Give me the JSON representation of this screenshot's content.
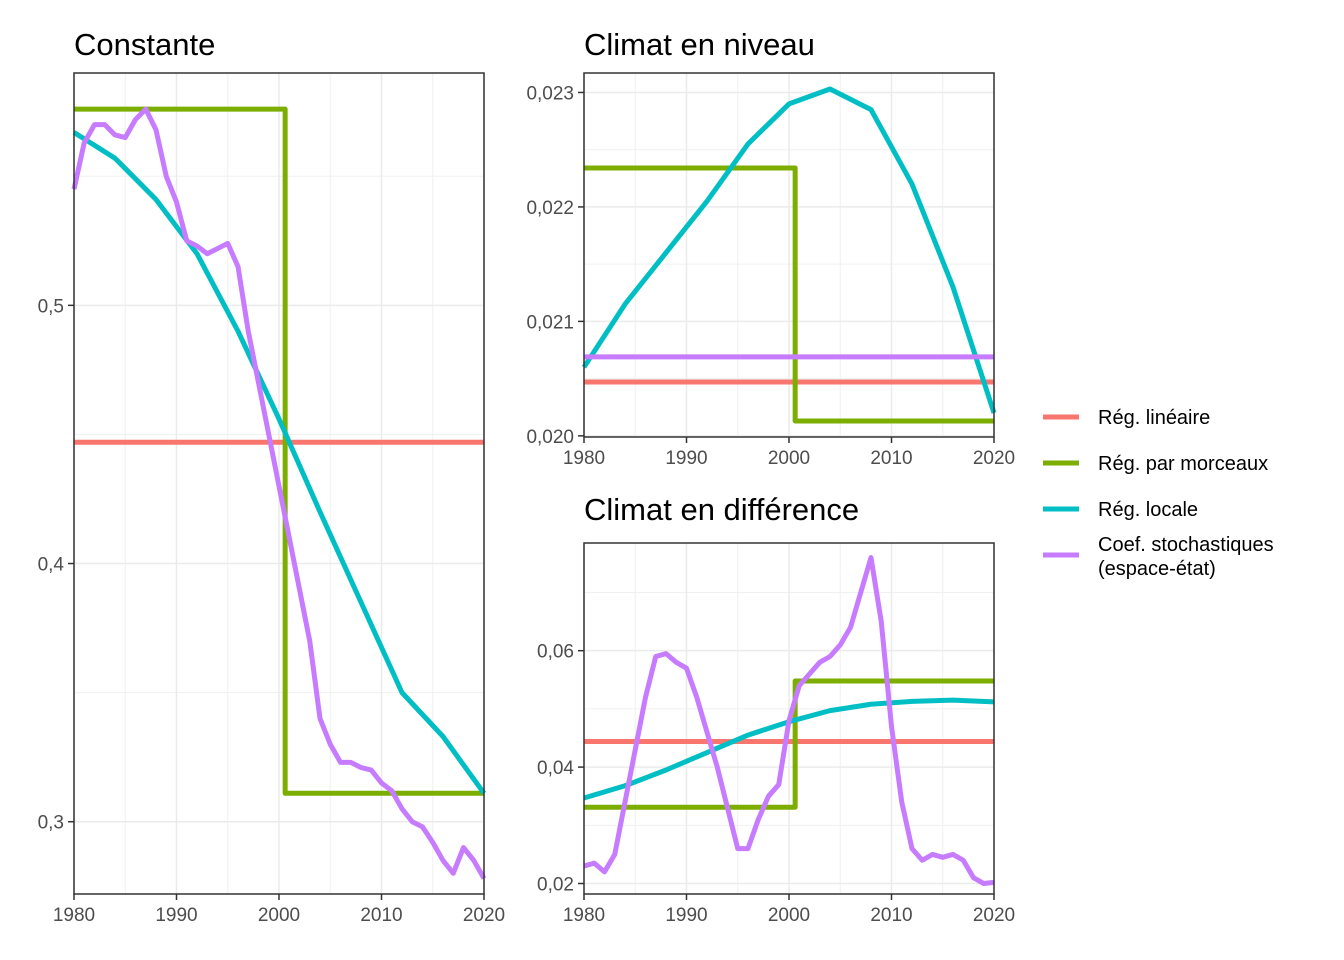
{
  "legend": [
    {
      "name": "Rég. linéaire",
      "color": "#F8766D"
    },
    {
      "name": "Rég. par morceaux",
      "color": "#7CAE00"
    },
    {
      "name": "Rég. locale",
      "color": "#00BFC4"
    },
    {
      "name": "Coef. stochastiques\n(espace-état)",
      "color": "#C77CFF"
    }
  ],
  "chart_data": [
    {
      "type": "line",
      "title": "Constante",
      "xlim": [
        1980,
        2020
      ],
      "ylim": [
        0.272,
        0.59
      ],
      "xticks": [
        1980,
        1990,
        2000,
        2010,
        2020
      ],
      "xtick_labels": [
        "1980",
        "1990",
        "2000",
        "2010",
        "2020"
      ],
      "yticks": [
        0.3,
        0.4,
        0.5
      ],
      "ytick_labels": [
        "0,3",
        "0,4",
        "0,5"
      ],
      "grid": true,
      "series": [
        {
          "name": "Rég. linéaire",
          "color": "#F8766D",
          "x": [
            1980,
            2020
          ],
          "y": [
            0.447,
            0.447
          ]
        },
        {
          "name": "Rég. par morceaux",
          "color": "#7CAE00",
          "x": [
            1980,
            2000.6,
            2000.6,
            2020
          ],
          "y": [
            0.576,
            0.576,
            0.311,
            0.311
          ]
        },
        {
          "name": "Rég. locale",
          "color": "#00BFC4",
          "x": [
            1980,
            1984,
            1988,
            1992,
            1996,
            2000,
            2004,
            2008,
            2012,
            2016,
            2020
          ],
          "y": [
            0.567,
            0.557,
            0.541,
            0.52,
            0.49,
            0.456,
            0.42,
            0.385,
            0.35,
            0.333,
            0.311
          ]
        },
        {
          "name": "Coef. stochastiques\n(espace-état)",
          "color": "#C77CFF",
          "x": [
            1980,
            1981,
            1982,
            1983,
            1984,
            1985,
            1986,
            1987,
            1988,
            1989,
            1990,
            1991,
            1992,
            1993,
            1994,
            1995,
            1996,
            1997,
            1998,
            1999,
            2000,
            2001,
            2002,
            2003,
            2004,
            2005,
            2006,
            2007,
            2008,
            2009,
            2010,
            2011,
            2012,
            2013,
            2014,
            2015,
            2016,
            2017,
            2018,
            2019,
            2020
          ],
          "y": [
            0.545,
            0.563,
            0.57,
            0.57,
            0.566,
            0.565,
            0.572,
            0.576,
            0.568,
            0.55,
            0.54,
            0.525,
            0.523,
            0.52,
            0.522,
            0.524,
            0.515,
            0.49,
            0.47,
            0.45,
            0.43,
            0.41,
            0.39,
            0.37,
            0.34,
            0.33,
            0.323,
            0.323,
            0.321,
            0.32,
            0.315,
            0.312,
            0.305,
            0.3,
            0.298,
            0.292,
            0.285,
            0.28,
            0.29,
            0.285,
            0.278
          ]
        }
      ]
    },
    {
      "type": "line",
      "title": "Climat en niveau",
      "xlim": [
        1980,
        2020
      ],
      "ylim": [
        0.01999,
        0.02317
      ],
      "xticks": [
        1980,
        1990,
        2000,
        2010,
        2020
      ],
      "xtick_labels": [
        "1980",
        "1990",
        "2000",
        "2010",
        "2020"
      ],
      "yticks": [
        0.02,
        0.021,
        0.022,
        0.023
      ],
      "ytick_labels": [
        "0,020",
        "0,021",
        "0,022",
        "0,023"
      ],
      "grid": true,
      "series": [
        {
          "name": "Rég. linéaire",
          "color": "#F8766D",
          "x": [
            1980,
            2020
          ],
          "y": [
            0.02047,
            0.02047
          ]
        },
        {
          "name": "Rég. par morceaux",
          "color": "#7CAE00",
          "x": [
            1980,
            2000.6,
            2000.6,
            2020
          ],
          "y": [
            0.02234,
            0.02234,
            0.02013,
            0.02013
          ]
        },
        {
          "name": "Rég. locale",
          "color": "#00BFC4",
          "x": [
            1980,
            1984,
            1988,
            1992,
            1996,
            2000,
            2004,
            2008,
            2012,
            2016,
            2020
          ],
          "y": [
            0.0206,
            0.02115,
            0.0216,
            0.02205,
            0.02255,
            0.0229,
            0.02303,
            0.02285,
            0.0222,
            0.0213,
            0.0202
          ]
        },
        {
          "name": "Coef. stochastiques\n(espace-état)",
          "color": "#C77CFF",
          "x": [
            1980,
            2020
          ],
          "y": [
            0.02069,
            0.02069
          ]
        }
      ]
    },
    {
      "type": "line",
      "title": "Climat en différence",
      "xlim": [
        1980,
        2020
      ],
      "ylim": [
        0.0182,
        0.0785
      ],
      "xticks": [
        1980,
        1990,
        2000,
        2010,
        2020
      ],
      "xtick_labels": [
        "1980",
        "1990",
        "2000",
        "2010",
        "2020"
      ],
      "yticks": [
        0.02,
        0.04,
        0.06
      ],
      "ytick_labels": [
        "0,02",
        "0,04",
        "0,06"
      ],
      "grid": true,
      "series": [
        {
          "name": "Rég. linéaire",
          "color": "#F8766D",
          "x": [
            1980,
            2020
          ],
          "y": [
            0.0444,
            0.0444
          ]
        },
        {
          "name": "Rég. par morceaux",
          "color": "#7CAE00",
          "x": [
            1980,
            2000.6,
            2000.6,
            2020
          ],
          "y": [
            0.0331,
            0.0331,
            0.0548,
            0.0548
          ]
        },
        {
          "name": "Rég. locale",
          "color": "#00BFC4",
          "x": [
            1980,
            1984,
            1988,
            1992,
            1996,
            2000,
            2004,
            2008,
            2012,
            2016,
            2020
          ],
          "y": [
            0.0347,
            0.0368,
            0.0395,
            0.0425,
            0.0455,
            0.0478,
            0.0497,
            0.0508,
            0.0513,
            0.0515,
            0.0512
          ]
        },
        {
          "name": "Coef. stochastiques\n(espace-état)",
          "color": "#C77CFF",
          "x": [
            1980,
            1981,
            1982,
            1983,
            1984,
            1985,
            1986,
            1987,
            1988,
            1989,
            1990,
            1991,
            1992,
            1993,
            1994,
            1995,
            1996,
            1997,
            1998,
            1999,
            2000,
            2001,
            2002,
            2003,
            2004,
            2005,
            2006,
            2007,
            2008,
            2009,
            2010,
            2011,
            2012,
            2013,
            2014,
            2015,
            2016,
            2017,
            2018,
            2019,
            2020
          ],
          "y": [
            0.023,
            0.0235,
            0.022,
            0.025,
            0.034,
            0.043,
            0.052,
            0.059,
            0.0595,
            0.058,
            0.057,
            0.052,
            0.046,
            0.04,
            0.033,
            0.026,
            0.026,
            0.031,
            0.035,
            0.037,
            0.048,
            0.054,
            0.056,
            0.058,
            0.059,
            0.061,
            0.064,
            0.07,
            0.076,
            0.065,
            0.047,
            0.034,
            0.026,
            0.024,
            0.025,
            0.0245,
            0.025,
            0.024,
            0.021,
            0.02,
            0.0202
          ]
        }
      ]
    }
  ]
}
